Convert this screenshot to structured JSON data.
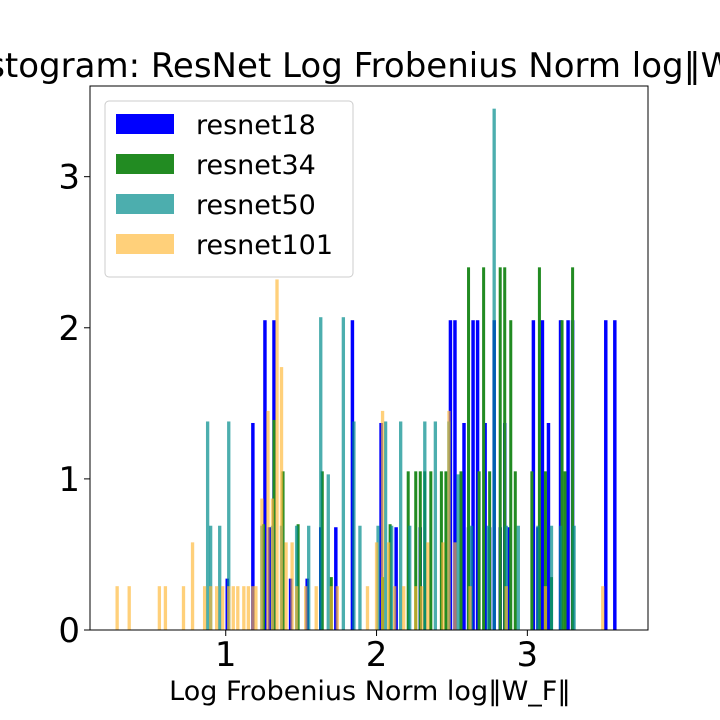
{
  "chart_data": {
    "type": "bar",
    "title": "Histogram: ResNet Log Frobenius Norm log‖W_F‖",
    "xlabel": "Log Frobenius Norm log‖W_F‖",
    "ylabel": "",
    "xlim": [
      0.1,
      3.8
    ],
    "ylim": [
      0,
      3.6
    ],
    "x_ticks": [
      {
        "value": 1,
        "label": "1"
      },
      {
        "value": 2,
        "label": "2"
      },
      {
        "value": 3,
        "label": "3"
      }
    ],
    "y_ticks": [
      {
        "value": 0,
        "label": "0"
      },
      {
        "value": 1,
        "label": "1"
      },
      {
        "value": 2,
        "label": "2"
      },
      {
        "value": 3,
        "label": "3"
      }
    ],
    "legend_position": "top-left",
    "series": [
      {
        "name": "resnet18",
        "color": "#0000ff",
        "opacity": 1.0,
        "bin_width": 0.023,
        "bars": [
          {
            "x": 1.01,
            "h": 0.34
          },
          {
            "x": 1.18,
            "h": 1.37
          },
          {
            "x": 1.26,
            "h": 2.05
          },
          {
            "x": 1.29,
            "h": 0.68
          },
          {
            "x": 1.32,
            "h": 2.05
          },
          {
            "x": 1.43,
            "h": 0.34
          },
          {
            "x": 1.54,
            "h": 0.34
          },
          {
            "x": 1.63,
            "h": 0.68
          },
          {
            "x": 1.73,
            "h": 0.68
          },
          {
            "x": 1.84,
            "h": 2.05
          },
          {
            "x": 2.03,
            "h": 1.37
          },
          {
            "x": 2.13,
            "h": 0.68
          },
          {
            "x": 2.29,
            "h": 0.68
          },
          {
            "x": 2.49,
            "h": 2.05
          },
          {
            "x": 2.52,
            "h": 2.05
          },
          {
            "x": 2.58,
            "h": 1.37
          },
          {
            "x": 2.61,
            "h": 0.68
          },
          {
            "x": 2.64,
            "h": 2.05
          },
          {
            "x": 2.67,
            "h": 2.05
          },
          {
            "x": 2.72,
            "h": 1.37
          },
          {
            "x": 2.75,
            "h": 0.68
          },
          {
            "x": 2.78,
            "h": 2.05
          },
          {
            "x": 2.82,
            "h": 0.68
          },
          {
            "x": 2.85,
            "h": 1.37
          },
          {
            "x": 2.88,
            "h": 0.68
          },
          {
            "x": 3.04,
            "h": 2.05
          },
          {
            "x": 3.07,
            "h": 0.68
          },
          {
            "x": 3.1,
            "h": 2.05
          },
          {
            "x": 3.14,
            "h": 1.37
          },
          {
            "x": 3.22,
            "h": 2.05
          },
          {
            "x": 3.27,
            "h": 2.05
          },
          {
            "x": 3.3,
            "h": 2.05
          },
          {
            "x": 3.52,
            "h": 2.05
          },
          {
            "x": 3.58,
            "h": 2.05
          }
        ]
      },
      {
        "name": "resnet34",
        "color": "#228b22",
        "opacity": 1.0,
        "bin_width": 0.02,
        "bars": [
          {
            "x": 1.25,
            "h": 0.7
          },
          {
            "x": 1.32,
            "h": 1.39
          },
          {
            "x": 1.38,
            "h": 1.05
          },
          {
            "x": 1.48,
            "h": 0.7
          },
          {
            "x": 1.64,
            "h": 1.05
          },
          {
            "x": 1.7,
            "h": 0.35
          },
          {
            "x": 2.04,
            "h": 0.35
          },
          {
            "x": 2.09,
            "h": 0.7
          },
          {
            "x": 2.21,
            "h": 1.05
          },
          {
            "x": 2.26,
            "h": 1.05
          },
          {
            "x": 2.29,
            "h": 1.05
          },
          {
            "x": 2.32,
            "h": 1.05
          },
          {
            "x": 2.36,
            "h": 1.05
          },
          {
            "x": 2.43,
            "h": 1.05
          },
          {
            "x": 2.46,
            "h": 1.05
          },
          {
            "x": 2.56,
            "h": 1.05
          },
          {
            "x": 2.61,
            "h": 2.4
          },
          {
            "x": 2.68,
            "h": 1.05
          },
          {
            "x": 2.71,
            "h": 2.4
          },
          {
            "x": 2.75,
            "h": 1.05
          },
          {
            "x": 2.82,
            "h": 2.4
          },
          {
            "x": 2.85,
            "h": 2.4
          },
          {
            "x": 2.89,
            "h": 2.05
          },
          {
            "x": 2.92,
            "h": 1.05
          },
          {
            "x": 3.03,
            "h": 1.05
          },
          {
            "x": 3.08,
            "h": 2.4
          },
          {
            "x": 3.12,
            "h": 1.05
          },
          {
            "x": 3.16,
            "h": 0.35
          },
          {
            "x": 3.23,
            "h": 2.05
          },
          {
            "x": 3.25,
            "h": 1.05
          },
          {
            "x": 3.3,
            "h": 2.4
          }
        ]
      },
      {
        "name": "resnet50",
        "color": "#008b8b",
        "opacity": 0.7,
        "bin_width": 0.022,
        "bars": [
          {
            "x": 0.88,
            "h": 1.38
          },
          {
            "x": 0.9,
            "h": 0.69
          },
          {
            "x": 0.96,
            "h": 0.69
          },
          {
            "x": 1.02,
            "h": 1.38
          },
          {
            "x": 1.24,
            "h": 0.69
          },
          {
            "x": 1.31,
            "h": 0.69
          },
          {
            "x": 1.37,
            "h": 0.69
          },
          {
            "x": 1.47,
            "h": 0.69
          },
          {
            "x": 1.55,
            "h": 0.69
          },
          {
            "x": 1.63,
            "h": 2.07
          },
          {
            "x": 1.68,
            "h": 1.03
          },
          {
            "x": 1.78,
            "h": 2.07
          },
          {
            "x": 1.85,
            "h": 1.38
          },
          {
            "x": 1.89,
            "h": 0.69
          },
          {
            "x": 2.01,
            "h": 0.69
          },
          {
            "x": 2.06,
            "h": 1.38
          },
          {
            "x": 2.1,
            "h": 0.69
          },
          {
            "x": 2.16,
            "h": 1.38
          },
          {
            "x": 2.22,
            "h": 0.69
          },
          {
            "x": 2.32,
            "h": 1.38
          },
          {
            "x": 2.39,
            "h": 1.38
          },
          {
            "x": 2.48,
            "h": 1.38
          },
          {
            "x": 2.54,
            "h": 1.03
          },
          {
            "x": 2.63,
            "h": 0.69
          },
          {
            "x": 2.74,
            "h": 0.69
          },
          {
            "x": 2.78,
            "h": 3.45
          },
          {
            "x": 2.86,
            "h": 0.69
          },
          {
            "x": 2.94,
            "h": 0.69
          },
          {
            "x": 3.07,
            "h": 0.69
          },
          {
            "x": 3.16,
            "h": 0.69
          },
          {
            "x": 3.22,
            "h": 0.69
          },
          {
            "x": 3.31,
            "h": 0.69
          }
        ]
      },
      {
        "name": "resnet101",
        "color": "#ffb732",
        "opacity": 0.65,
        "bin_width": 0.022,
        "bars": [
          {
            "x": 0.28,
            "h": 0.29
          },
          {
            "x": 0.36,
            "h": 0.29
          },
          {
            "x": 0.56,
            "h": 0.29
          },
          {
            "x": 0.6,
            "h": 0.29
          },
          {
            "x": 0.72,
            "h": 0.29
          },
          {
            "x": 0.78,
            "h": 0.58
          },
          {
            "x": 0.86,
            "h": 0.29
          },
          {
            "x": 0.9,
            "h": 0.29
          },
          {
            "x": 0.94,
            "h": 0.29
          },
          {
            "x": 0.98,
            "h": 0.29
          },
          {
            "x": 1.02,
            "h": 0.29
          },
          {
            "x": 1.05,
            "h": 0.29
          },
          {
            "x": 1.08,
            "h": 0.29
          },
          {
            "x": 1.12,
            "h": 0.29
          },
          {
            "x": 1.15,
            "h": 0.29
          },
          {
            "x": 1.18,
            "h": 0.29
          },
          {
            "x": 1.2,
            "h": 0.29
          },
          {
            "x": 1.24,
            "h": 0.87
          },
          {
            "x": 1.28,
            "h": 1.45
          },
          {
            "x": 1.31,
            "h": 0.87
          },
          {
            "x": 1.34,
            "h": 2.32
          },
          {
            "x": 1.37,
            "h": 1.74
          },
          {
            "x": 1.4,
            "h": 0.58
          },
          {
            "x": 1.44,
            "h": 0.58
          },
          {
            "x": 1.47,
            "h": 0.29
          },
          {
            "x": 1.53,
            "h": 0.29
          },
          {
            "x": 1.6,
            "h": 0.29
          },
          {
            "x": 1.7,
            "h": 0.29
          },
          {
            "x": 1.74,
            "h": 0.29
          },
          {
            "x": 1.94,
            "h": 0.29
          },
          {
            "x": 2.0,
            "h": 0.58
          },
          {
            "x": 2.04,
            "h": 1.45
          },
          {
            "x": 2.08,
            "h": 0.58
          },
          {
            "x": 2.12,
            "h": 0.29
          },
          {
            "x": 2.18,
            "h": 0.29
          },
          {
            "x": 2.26,
            "h": 0.29
          },
          {
            "x": 2.3,
            "h": 0.29
          },
          {
            "x": 2.34,
            "h": 0.58
          },
          {
            "x": 2.44,
            "h": 0.58
          },
          {
            "x": 2.48,
            "h": 1.45
          },
          {
            "x": 2.52,
            "h": 0.58
          },
          {
            "x": 2.62,
            "h": 0.29
          },
          {
            "x": 2.86,
            "h": 0.29
          },
          {
            "x": 3.12,
            "h": 0.29
          },
          {
            "x": 3.5,
            "h": 0.29
          }
        ]
      }
    ]
  }
}
